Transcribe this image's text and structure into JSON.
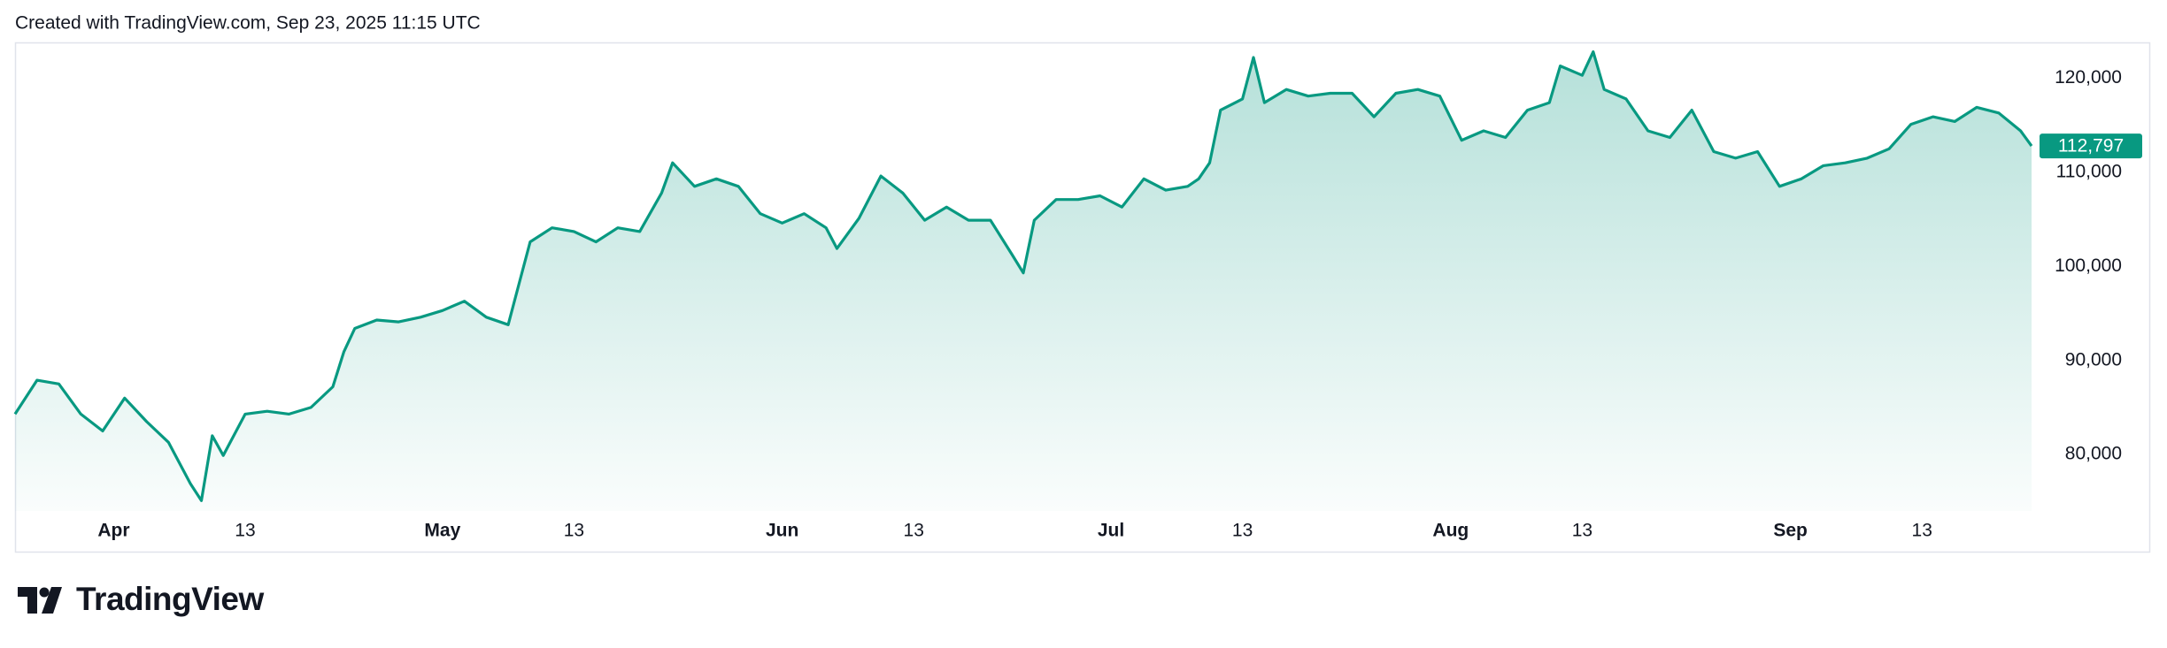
{
  "header": "Created with TradingView.com, Sep 23, 2025 11:15 UTC",
  "brand": "TradingView",
  "chart_data": {
    "type": "area",
    "color": "#089981",
    "x": [
      "2025-03-23",
      "2025-03-25",
      "2025-03-27",
      "2025-03-29",
      "2025-03-31",
      "2025-04-02",
      "2025-04-04",
      "2025-04-06",
      "2025-04-08",
      "2025-04-09",
      "2025-04-10",
      "2025-04-11",
      "2025-04-13",
      "2025-04-15",
      "2025-04-17",
      "2025-04-19",
      "2025-04-21",
      "2025-04-22",
      "2025-04-23",
      "2025-04-25",
      "2025-04-27",
      "2025-04-29",
      "2025-05-01",
      "2025-05-03",
      "2025-05-05",
      "2025-05-07",
      "2025-05-08",
      "2025-05-09",
      "2025-05-11",
      "2025-05-13",
      "2025-05-15",
      "2025-05-17",
      "2025-05-19",
      "2025-05-21",
      "2025-05-22",
      "2025-05-24",
      "2025-05-26",
      "2025-05-28",
      "2025-05-30",
      "2025-06-01",
      "2025-06-03",
      "2025-06-05",
      "2025-06-06",
      "2025-06-08",
      "2025-06-10",
      "2025-06-12",
      "2025-06-14",
      "2025-06-16",
      "2025-06-18",
      "2025-06-20",
      "2025-06-22",
      "2025-06-23",
      "2025-06-24",
      "2025-06-26",
      "2025-06-28",
      "2025-06-30",
      "2025-07-02",
      "2025-07-04",
      "2025-07-06",
      "2025-07-08",
      "2025-07-09",
      "2025-07-10",
      "2025-07-11",
      "2025-07-13",
      "2025-07-14",
      "2025-07-15",
      "2025-07-17",
      "2025-07-19",
      "2025-07-21",
      "2025-07-23",
      "2025-07-25",
      "2025-07-27",
      "2025-07-29",
      "2025-07-31",
      "2025-08-02",
      "2025-08-04",
      "2025-08-06",
      "2025-08-08",
      "2025-08-10",
      "2025-08-11",
      "2025-08-13",
      "2025-08-14",
      "2025-08-15",
      "2025-08-17",
      "2025-08-19",
      "2025-08-21",
      "2025-08-23",
      "2025-08-25",
      "2025-08-27",
      "2025-08-29",
      "2025-08-31",
      "2025-09-02",
      "2025-09-04",
      "2025-09-06",
      "2025-09-08",
      "2025-09-10",
      "2025-09-12",
      "2025-09-14",
      "2025-09-16",
      "2025-09-18",
      "2025-09-20",
      "2025-09-22",
      "2025-09-23"
    ],
    "values": [
      84300,
      87900,
      87500,
      84300,
      82500,
      86000,
      83500,
      81300,
      76900,
      75100,
      82000,
      79900,
      84300,
      84600,
      84300,
      85000,
      87200,
      90900,
      93400,
      94300,
      94100,
      94600,
      95300,
      96300,
      94600,
      93800,
      98200,
      102600,
      104100,
      103700,
      102600,
      104100,
      103700,
      107800,
      111000,
      108500,
      109300,
      108500,
      105600,
      104600,
      105600,
      104100,
      101900,
      105100,
      109600,
      107800,
      104900,
      106300,
      104900,
      104900,
      101200,
      99300,
      104900,
      107100,
      107100,
      107500,
      106300,
      109300,
      108100,
      108500,
      109300,
      111000,
      116600,
      117800,
      122200,
      117400,
      118800,
      118100,
      118400,
      118400,
      115900,
      118400,
      118800,
      118100,
      113400,
      114400,
      113700,
      116600,
      117400,
      121300,
      120300,
      122800,
      118800,
      117800,
      114400,
      113700,
      116600,
      112200,
      111500,
      112200,
      108500,
      109300,
      110700,
      111000,
      111500,
      112500,
      115100,
      115900,
      115400,
      116900,
      116300,
      114400,
      112797
    ],
    "last_value_label": "112,797",
    "xlim": [
      "2025-03-23",
      "2025-09-23"
    ],
    "xticks": [
      {
        "value": "2025-04-01",
        "label": "Apr"
      },
      {
        "value": "2025-04-13",
        "label": "13"
      },
      {
        "value": "2025-05-01",
        "label": "May"
      },
      {
        "value": "2025-05-13",
        "label": "13"
      },
      {
        "value": "2025-06-01",
        "label": "Jun"
      },
      {
        "value": "2025-06-13",
        "label": "13"
      },
      {
        "value": "2025-07-01",
        "label": "Jul"
      },
      {
        "value": "2025-07-13",
        "label": "13"
      },
      {
        "value": "2025-08-01",
        "label": "Aug"
      },
      {
        "value": "2025-08-13",
        "label": "13"
      },
      {
        "value": "2025-09-01",
        "label": "Sep"
      },
      {
        "value": "2025-09-13",
        "label": "13"
      }
    ],
    "ylim": [
      74000,
      123800
    ],
    "yticks": [
      {
        "value": 80000,
        "label": "80,000"
      },
      {
        "value": 90000,
        "label": "90,000"
      },
      {
        "value": 100000,
        "label": "100,000"
      },
      {
        "value": 110000,
        "label": "110,000"
      },
      {
        "value": 120000,
        "label": "120,000"
      }
    ],
    "grid": false
  }
}
